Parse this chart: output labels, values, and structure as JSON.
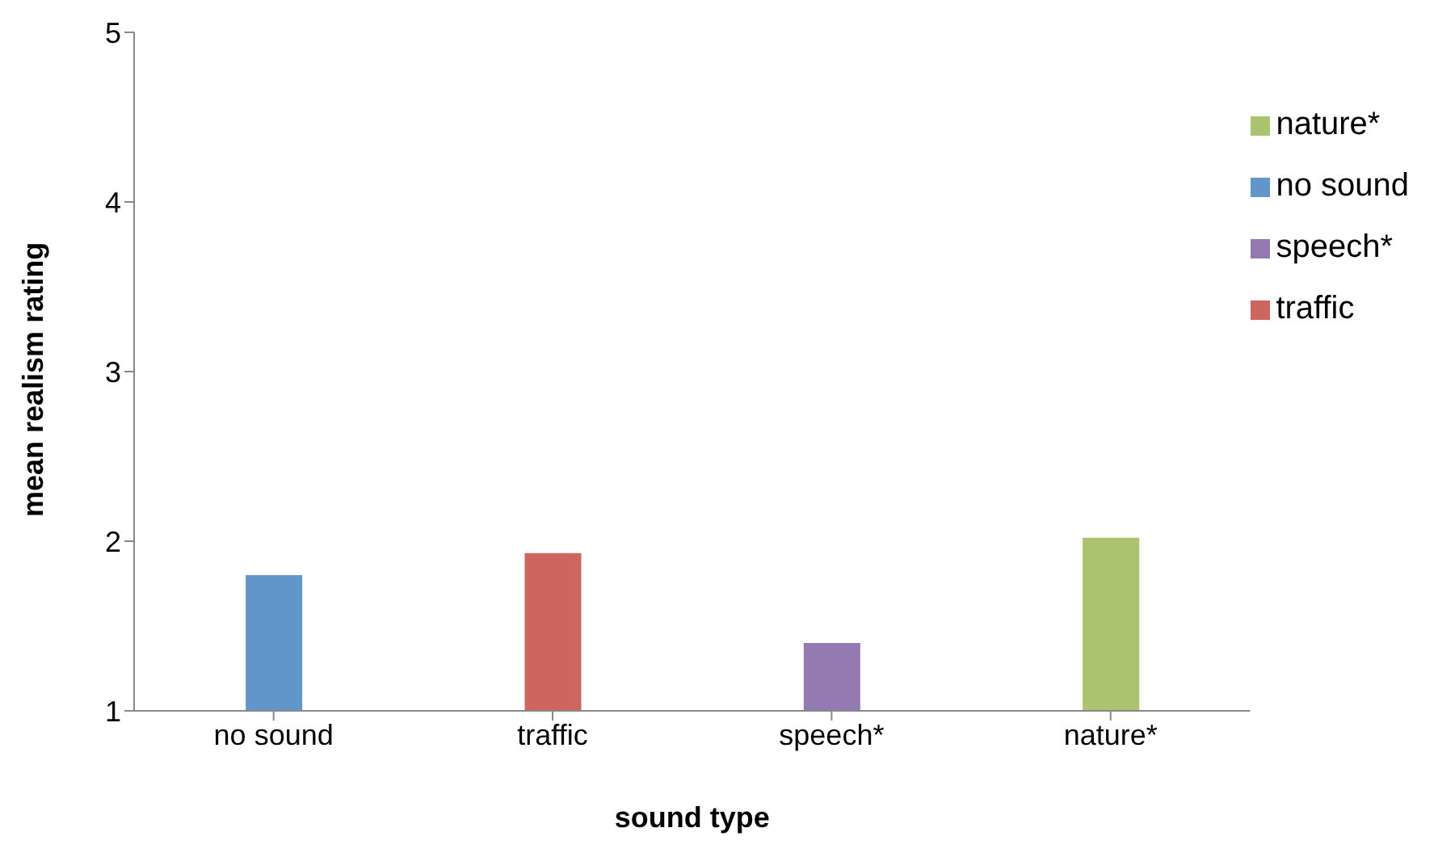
{
  "chart_data": {
    "type": "bar",
    "xlabel": "sound type",
    "ylabel": "mean realism rating",
    "categories": [
      "no sound",
      "traffic",
      "speech*",
      "nature*"
    ],
    "series": [
      {
        "name": "no sound",
        "color": "#6096c9",
        "values": [
          1.8,
          null,
          null,
          null
        ]
      },
      {
        "name": "traffic",
        "color": "#cd665e",
        "values": [
          null,
          1.93,
          null,
          null
        ]
      },
      {
        "name": "speech*",
        "color": "#937bb2",
        "values": [
          null,
          null,
          1.4,
          null
        ]
      },
      {
        "name": "nature*",
        "color": "#a9c46c",
        "values": [
          null,
          null,
          null,
          2.02
        ]
      }
    ],
    "stacked": true,
    "ylim": [
      1,
      5
    ],
    "yticks": [
      1,
      2,
      3,
      4,
      5
    ],
    "grid": false,
    "legend": "top right"
  }
}
